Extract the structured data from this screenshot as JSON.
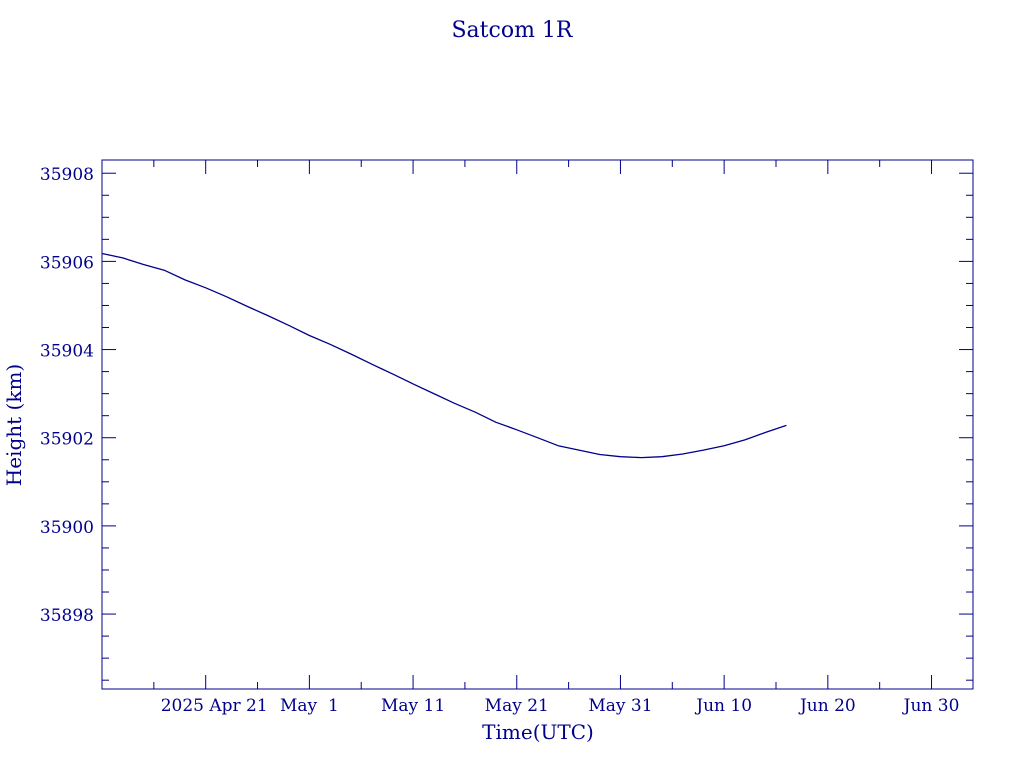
{
  "colors": {
    "ink": "#00008b",
    "background": "#ffffff"
  },
  "chart_data": {
    "type": "line",
    "title": "Satcom 1R",
    "xlabel": "Time(UTC)",
    "ylabel": "Height (km)",
    "x_is_date": true,
    "xlim": [
      "2025-04-11",
      "2025-07-04"
    ],
    "ylim": [
      35896.3,
      35908.3
    ],
    "x_ticks": [
      {
        "date": "2025-04-21",
        "label": "2025 Apr 21"
      },
      {
        "date": "2025-05-01",
        "label": "May  1"
      },
      {
        "date": "2025-05-11",
        "label": "May 11"
      },
      {
        "date": "2025-05-21",
        "label": "May 21"
      },
      {
        "date": "2025-05-31",
        "label": "May 31"
      },
      {
        "date": "2025-06-10",
        "label": "Jun 10"
      },
      {
        "date": "2025-06-20",
        "label": "Jun 20"
      },
      {
        "date": "2025-06-30",
        "label": "Jun 30"
      }
    ],
    "y_ticks": [
      35898,
      35900,
      35902,
      35904,
      35906,
      35908
    ],
    "grid": false,
    "series": [
      {
        "color": "#00008b",
        "points": [
          [
            "2025-04-11",
            35906.18
          ],
          [
            "2025-04-13",
            35906.08
          ],
          [
            "2025-04-15",
            35905.93
          ],
          [
            "2025-04-17",
            35905.8
          ],
          [
            "2025-04-19",
            35905.58
          ],
          [
            "2025-04-21",
            35905.4
          ],
          [
            "2025-04-23",
            35905.2
          ],
          [
            "2025-04-25",
            35904.98
          ],
          [
            "2025-04-27",
            35904.77
          ],
          [
            "2025-04-29",
            35904.55
          ],
          [
            "2025-05-01",
            35904.32
          ],
          [
            "2025-05-03",
            35904.12
          ],
          [
            "2025-05-05",
            35903.9
          ],
          [
            "2025-05-07",
            35903.67
          ],
          [
            "2025-05-09",
            35903.45
          ],
          [
            "2025-05-11",
            35903.22
          ],
          [
            "2025-05-13",
            35903.0
          ],
          [
            "2025-05-15",
            35902.78
          ],
          [
            "2025-05-17",
            35902.58
          ],
          [
            "2025-05-19",
            35902.35
          ],
          [
            "2025-05-21",
            35902.18
          ],
          [
            "2025-05-23",
            35902.0
          ],
          [
            "2025-05-25",
            35901.82
          ],
          [
            "2025-05-27",
            35901.72
          ],
          [
            "2025-05-29",
            35901.62
          ],
          [
            "2025-05-31",
            35901.57
          ],
          [
            "2025-06-02",
            35901.55
          ],
          [
            "2025-06-04",
            35901.57
          ],
          [
            "2025-06-06",
            35901.63
          ],
          [
            "2025-06-08",
            35901.72
          ],
          [
            "2025-06-10",
            35901.82
          ],
          [
            "2025-06-12",
            35901.95
          ],
          [
            "2025-06-14",
            35902.12
          ],
          [
            "2025-06-16",
            35902.28
          ]
        ]
      }
    ]
  }
}
